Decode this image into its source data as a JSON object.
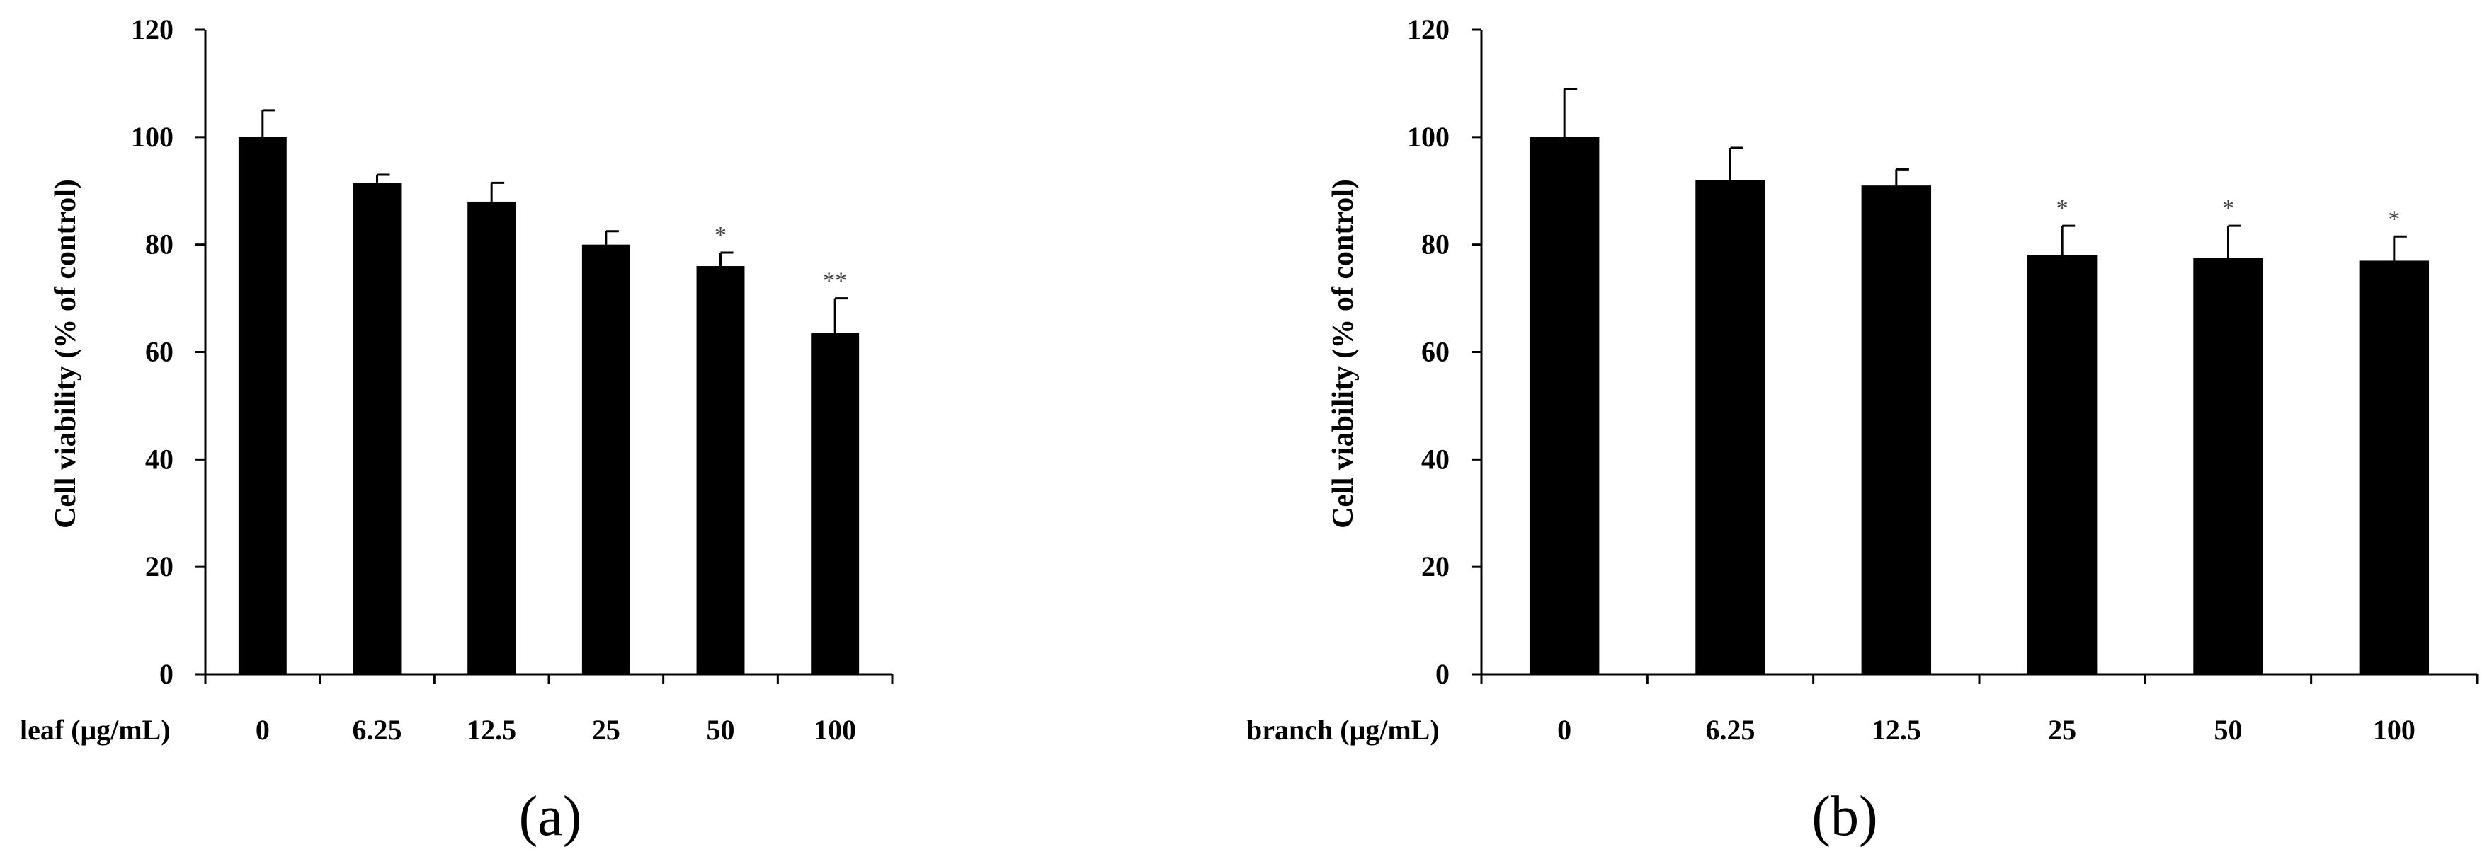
{
  "chart_data": [
    {
      "type": "bar",
      "panel_label": "(a)",
      "xlabel": "leaf (μg/mL)",
      "ylabel": "Cell viability (% of control)",
      "categories": [
        "0",
        "6.25",
        "12.5",
        "25",
        "50",
        "100"
      ],
      "values": [
        100,
        91.5,
        88,
        80,
        76,
        63.5
      ],
      "errors": [
        5,
        1.5,
        3.5,
        2.5,
        2.5,
        6.5
      ],
      "significance": [
        "",
        "",
        "",
        "",
        "*",
        "**"
      ],
      "ylim": [
        0,
        120
      ],
      "yticks": [
        "0",
        "20",
        "40",
        "60",
        "80",
        "100",
        "120"
      ],
      "grid": false,
      "bar_color": "#000000"
    },
    {
      "type": "bar",
      "panel_label": "(b)",
      "xlabel": "branch (μg/mL)",
      "ylabel": "Cell viability (% of control)",
      "categories": [
        "0",
        "6.25",
        "12.5",
        "25",
        "50",
        "100"
      ],
      "values": [
        100,
        92,
        91,
        78,
        77.5,
        77
      ],
      "errors": [
        9,
        6,
        3,
        5.5,
        6,
        4.5
      ],
      "significance": [
        "",
        "",
        "",
        "*",
        "*",
        "*"
      ],
      "ylim": [
        0,
        120
      ],
      "yticks": [
        "0",
        "20",
        "40",
        "60",
        "80",
        "100",
        "120"
      ],
      "grid": false,
      "bar_color": "#000000"
    }
  ]
}
